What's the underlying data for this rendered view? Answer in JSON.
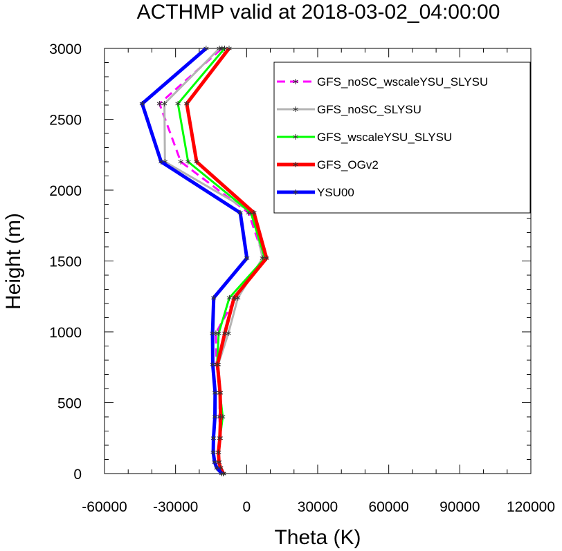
{
  "chart_data": {
    "type": "line",
    "title": "ACTHMP valid at 2018-03-02_04:00:00",
    "xlabel": "Theta (K)",
    "ylabel": "Height (m)",
    "xlim": [
      -60000,
      120000
    ],
    "ylim": [
      0,
      3000
    ],
    "xticks": [
      -60000,
      -30000,
      0,
      30000,
      60000,
      90000,
      120000
    ],
    "xtick_labels": [
      "-60000",
      "-30000",
      "0",
      "30000",
      "60000",
      "90000",
      "120000"
    ],
    "yticks": [
      0,
      500,
      1000,
      1500,
      2000,
      2500,
      3000
    ],
    "ytick_labels": [
      "0",
      "500",
      "1000",
      "1500",
      "2000",
      "2500",
      "3000"
    ],
    "legend_position": "top-right",
    "grid": false,
    "series": [
      {
        "name": "GFS_noSC_wscaleYSU_SLYSU",
        "color": "#ff00ff",
        "dashed": true,
        "points": [
          [
            -9800,
            0
          ],
          [
            -11000,
            40
          ],
          [
            -11700,
            80
          ],
          [
            -12000,
            150
          ],
          [
            -11200,
            250
          ],
          [
            -11500,
            400
          ],
          [
            -11300,
            570
          ],
          [
            -12700,
            770
          ],
          [
            -13000,
            990
          ],
          [
            -4700,
            1240
          ],
          [
            7300,
            1520
          ],
          [
            800,
            1840
          ],
          [
            -27800,
            2200
          ],
          [
            -36800,
            2610
          ],
          [
            -10400,
            3000
          ]
        ]
      },
      {
        "name": "GFS_noSC_SLYSU",
        "color": "#b4b4b4",
        "dashed": false,
        "points": [
          [
            -9800,
            0
          ],
          [
            -11000,
            40
          ],
          [
            -11700,
            80
          ],
          [
            -11900,
            150
          ],
          [
            -11100,
            250
          ],
          [
            -10300,
            400
          ],
          [
            -11100,
            570
          ],
          [
            -12000,
            770
          ],
          [
            -7700,
            990
          ],
          [
            -3700,
            1240
          ],
          [
            6700,
            1520
          ],
          [
            2700,
            1840
          ],
          [
            -34500,
            2200
          ],
          [
            -34700,
            2610
          ],
          [
            -11500,
            3000
          ]
        ]
      },
      {
        "name": "GFS_wscaleYSU_SLYSU",
        "color": "#00ff00",
        "dashed": false,
        "points": [
          [
            -9800,
            0
          ],
          [
            -11000,
            40
          ],
          [
            -11700,
            80
          ],
          [
            -11900,
            150
          ],
          [
            -11300,
            250
          ],
          [
            -10100,
            400
          ],
          [
            -11300,
            570
          ],
          [
            -12500,
            770
          ],
          [
            -11800,
            990
          ],
          [
            -7300,
            1240
          ],
          [
            7700,
            1520
          ],
          [
            1800,
            1840
          ],
          [
            -24700,
            2200
          ],
          [
            -29000,
            2610
          ],
          [
            -9300,
            3000
          ]
        ]
      },
      {
        "name": "GFS_OGv2",
        "color": "#ff0000",
        "dashed": false,
        "points": [
          [
            -9800,
            0
          ],
          [
            -11000,
            40
          ],
          [
            -11700,
            80
          ],
          [
            -11900,
            150
          ],
          [
            -11300,
            250
          ],
          [
            -11000,
            400
          ],
          [
            -11200,
            570
          ],
          [
            -12300,
            770
          ],
          [
            -9200,
            990
          ],
          [
            -5300,
            1240
          ],
          [
            8400,
            1520
          ],
          [
            3100,
            1840
          ],
          [
            -21100,
            2200
          ],
          [
            -25300,
            2610
          ],
          [
            -7400,
            3000
          ]
        ]
      },
      {
        "name": "YSU00",
        "color": "#0000ff",
        "dashed": false,
        "points": [
          [
            -10500,
            0
          ],
          [
            -12600,
            40
          ],
          [
            -13500,
            80
          ],
          [
            -14100,
            150
          ],
          [
            -14000,
            250
          ],
          [
            -13400,
            400
          ],
          [
            -13300,
            570
          ],
          [
            -14300,
            770
          ],
          [
            -14400,
            990
          ],
          [
            -13900,
            1240
          ],
          [
            100,
            1520
          ],
          [
            -2700,
            1840
          ],
          [
            -36100,
            2200
          ],
          [
            -44100,
            2610
          ],
          [
            -17100,
            3000
          ]
        ]
      }
    ]
  }
}
